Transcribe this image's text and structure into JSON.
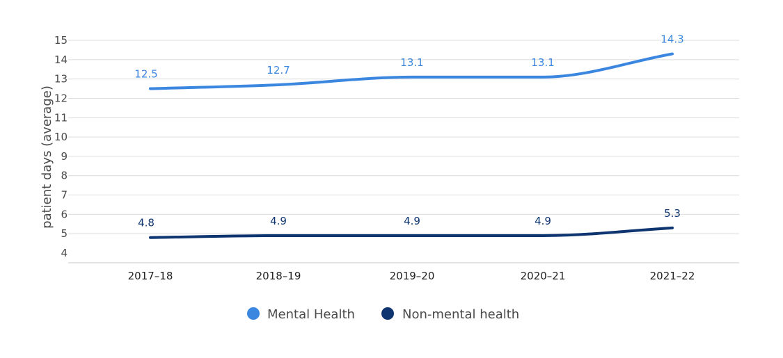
{
  "chart_data": {
    "type": "line",
    "title": "",
    "xlabel": "",
    "ylabel": "patient days (average)",
    "categories": [
      "2017–18",
      "2018–19",
      "2019–20",
      "2020–21",
      "2021–22"
    ],
    "ylim": [
      4,
      15
    ],
    "yticks": [
      "4",
      "5",
      "6",
      "7",
      "8",
      "9",
      "10",
      "11",
      "12",
      "13",
      "14",
      "15"
    ],
    "grid": true,
    "legend_position": "bottom",
    "series": [
      {
        "name": "Mental Health",
        "color": "#3b87e0",
        "values": [
          12.5,
          12.7,
          13.1,
          13.1,
          14.3
        ],
        "labels": [
          "12.5",
          "12.7",
          "13.1",
          "13.1",
          "14.3"
        ]
      },
      {
        "name": "Non-mental health",
        "color": "#0e3570",
        "values": [
          4.8,
          4.9,
          4.9,
          4.9,
          5.3
        ],
        "labels": [
          "4.8",
          "4.9",
          "4.9",
          "4.9",
          "5.3"
        ]
      }
    ]
  }
}
